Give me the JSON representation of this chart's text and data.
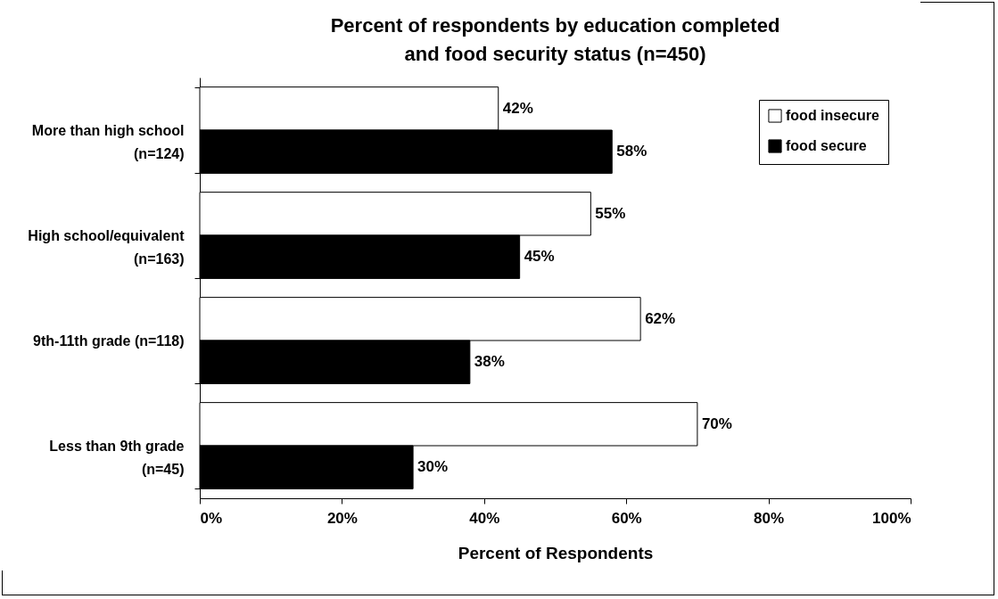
{
  "chart_data": {
    "type": "bar",
    "orientation": "horizontal",
    "title": "Percent of respondents by education completed and food security status (n=450)",
    "xlabel": "Percent of Respondents",
    "categories": [
      "More than high school (n=124)",
      "High school/equivalent (n=163)",
      "9th-11th grade (n=118)",
      "Less than 9th grade (n=45)"
    ],
    "series": [
      {
        "name": "food insecure",
        "color": "#ffffff",
        "values": [
          42,
          55,
          62,
          70
        ],
        "value_labels": [
          "42%",
          "55%",
          "62%",
          "70%"
        ]
      },
      {
        "name": "food secure",
        "color": "#000000",
        "values": [
          58,
          45,
          38,
          30
        ],
        "value_labels": [
          "58%",
          "45%",
          "38%",
          "30%"
        ]
      }
    ],
    "xlim": [
      0,
      100
    ],
    "xticks": [
      {
        "value": 0,
        "label": "0%"
      },
      {
        "value": 20,
        "label": "20%"
      },
      {
        "value": 40,
        "label": "40%"
      },
      {
        "value": 60,
        "label": "60%"
      },
      {
        "value": 80,
        "label": "80%"
      },
      {
        "value": 100,
        "label": "100%"
      }
    ],
    "legend": "top right",
    "grid": false
  }
}
